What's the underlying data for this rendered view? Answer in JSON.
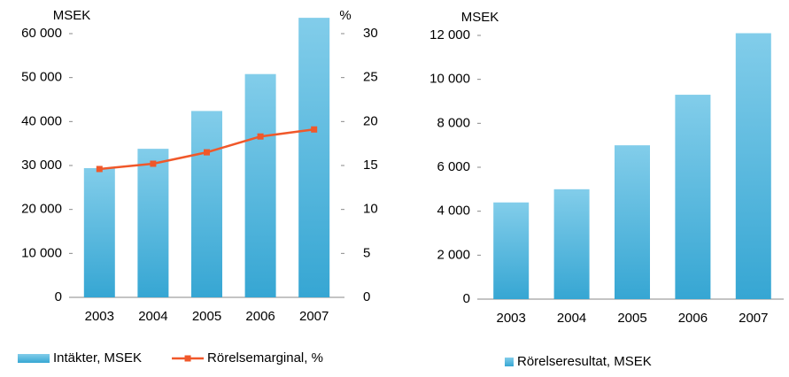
{
  "chart_data": [
    {
      "type": "bar",
      "y_label": "MSEK",
      "y2_label": "%",
      "categories": [
        "2003",
        "2004",
        "2005",
        "2006",
        "2007"
      ],
      "series": [
        {
          "name": "Intäkter, MSEK",
          "color": "#4fb6df",
          "values": [
            29400,
            33800,
            42400,
            50800,
            63600
          ]
        },
        {
          "name": "Rörelsemarginal, %",
          "color": "#f0582a",
          "type": "line",
          "axis": "y2",
          "values": [
            14.6,
            15.2,
            16.5,
            18.3,
            19.1
          ]
        }
      ],
      "ylim": [
        0,
        60000
      ],
      "yticks": [
        0,
        {
          "value": 10000,
          "label": "10 000"
        },
        {
          "value": 20000,
          "label": "20 000"
        },
        {
          "value": 30000,
          "label": "30 000"
        },
        {
          "value": 40000,
          "label": "40 000"
        },
        {
          "value": 50000,
          "label": "50 000"
        },
        {
          "value": 60000,
          "label": "60 000"
        }
      ],
      "y2lim": [
        0,
        30
      ],
      "y2ticks": [
        0,
        5,
        10,
        15,
        20,
        25,
        30
      ]
    },
    {
      "type": "bar",
      "y_label": "MSEK",
      "categories": [
        "2003",
        "2004",
        "2005",
        "2006",
        "2007"
      ],
      "series": [
        {
          "name": "Rörelseresultat, MSEK",
          "color": "#4fb6df",
          "values": [
            4400,
            5000,
            7000,
            9300,
            12100
          ]
        }
      ],
      "ylim": [
        0,
        12000
      ],
      "yticks": [
        0,
        {
          "value": 2000,
          "label": "2 000"
        },
        {
          "value": 4000,
          "label": "4 000"
        },
        {
          "value": 6000,
          "label": "6 000"
        },
        {
          "value": 8000,
          "label": "8 000"
        },
        {
          "value": 10000,
          "label": "10 000"
        },
        {
          "value": 12000,
          "label": "12 000"
        }
      ]
    }
  ]
}
